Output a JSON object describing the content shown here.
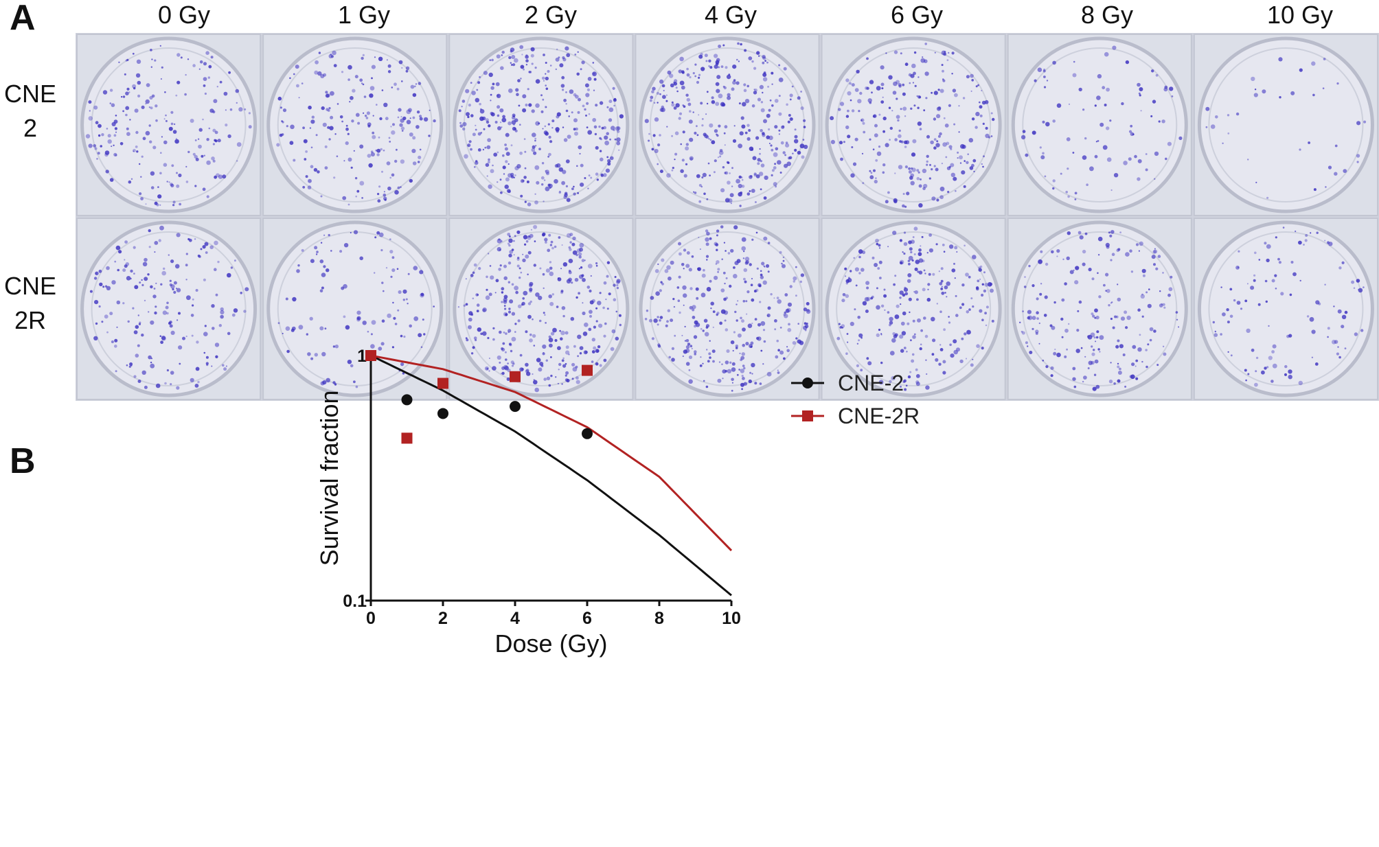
{
  "panel_a": {
    "letter": "A",
    "doses": [
      "0 Gy",
      "1 Gy",
      "2 Gy",
      "4 Gy",
      "6 Gy",
      "8 Gy",
      "10 Gy"
    ],
    "rows": [
      {
        "line1": "CNE",
        "line2": "2"
      },
      {
        "line1": "CNE",
        "line2": "2R"
      }
    ],
    "stain_color": "#3a2fc0",
    "dish_density": [
      [
        0.55,
        0.55,
        0.95,
        0.9,
        0.7,
        0.25,
        0.1
      ],
      [
        0.5,
        0.3,
        0.95,
        0.85,
        0.7,
        0.55,
        0.3
      ]
    ]
  },
  "panel_b": {
    "letter": "B",
    "chart_data": {
      "type": "scatter",
      "xlabel": "Dose (Gy)",
      "ylabel": "Survival fraction",
      "xlim": [
        0,
        10
      ],
      "ylim": [
        0.1,
        1
      ],
      "y_scale": "log",
      "x_ticks": [
        "0",
        "2",
        "4",
        "6",
        "8",
        "10"
      ],
      "y_ticks": [
        "0.1",
        "1"
      ],
      "legend_position": "top-right",
      "series": [
        {
          "name": "CNE-2",
          "color": "#111111",
          "marker": "circle",
          "x": [
            0,
            1,
            2,
            4,
            6
          ],
          "y": [
            1.0,
            0.66,
            0.58,
            0.62,
            0.48
          ],
          "fit_x": [
            0,
            2,
            4,
            6,
            8,
            10
          ],
          "fit_y": [
            1.0,
            0.72,
            0.49,
            0.31,
            0.185,
            0.105
          ]
        },
        {
          "name": "CNE-2R",
          "color": "#b22222",
          "marker": "square",
          "x": [
            0,
            1,
            2,
            4,
            6
          ],
          "y": [
            1.0,
            0.46,
            0.77,
            0.82,
            0.87
          ],
          "fit_x": [
            0,
            2,
            4,
            6,
            8,
            10
          ],
          "fit_y": [
            1.0,
            0.88,
            0.71,
            0.51,
            0.32,
            0.16
          ]
        }
      ]
    }
  }
}
